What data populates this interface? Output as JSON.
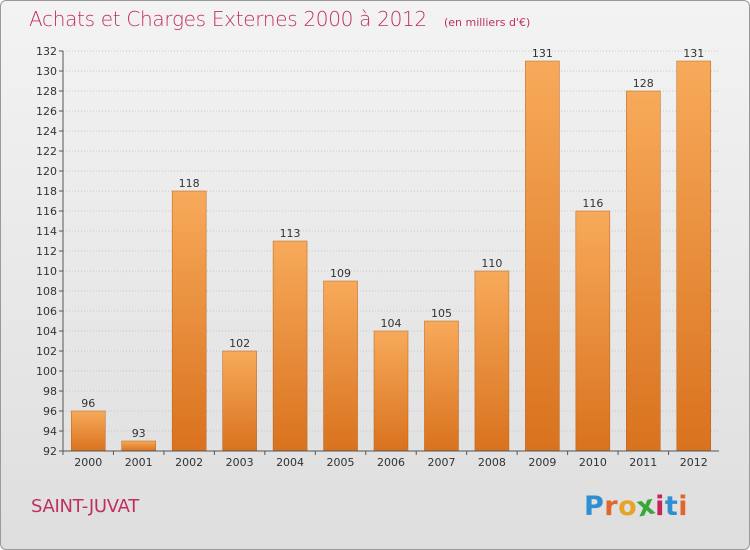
{
  "title": "Achats et Charges Externes 2000 à 2012",
  "unit": "(en milliers d'€)",
  "town": "SAINT-JUVAT",
  "logo": {
    "letters": [
      "P",
      "r",
      "o",
      "x",
      "i",
      "t",
      "i"
    ],
    "colors": [
      "#2f8fd0",
      "#e0662a",
      "#e8a42a",
      "#3aa53a",
      "#c8245a",
      "#2f8fd0",
      "#e0662a"
    ]
  },
  "colors": {
    "bar_top": "#f7aa5a",
    "bar_bottom": "#d9721e",
    "title": "#c0305e"
  },
  "chart_data": {
    "type": "bar",
    "categories": [
      "2000",
      "2001",
      "2002",
      "2003",
      "2004",
      "2005",
      "2006",
      "2007",
      "2008",
      "2009",
      "2010",
      "2011",
      "2012"
    ],
    "values": [
      96,
      93,
      118,
      102,
      113,
      109,
      104,
      105,
      110,
      131,
      116,
      128,
      131
    ],
    "ylim": [
      92,
      132
    ],
    "yticks": [
      92,
      94,
      96,
      98,
      100,
      102,
      104,
      106,
      108,
      110,
      112,
      114,
      116,
      118,
      120,
      122,
      124,
      126,
      128,
      130,
      132
    ],
    "grid": true,
    "title": "Achats et Charges Externes 2000 à 2012",
    "xlabel": "",
    "ylabel": ""
  }
}
